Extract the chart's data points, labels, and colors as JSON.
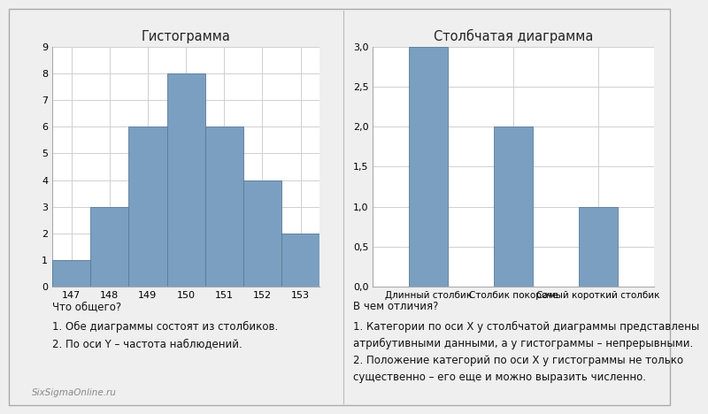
{
  "hist_title": "Гистограмма",
  "bar_title": "Столбчатая диаграмма",
  "hist_bins": [
    147,
    148,
    149,
    150,
    151,
    152,
    153
  ],
  "hist_values": [
    1,
    3,
    6,
    8,
    6,
    4,
    2
  ],
  "hist_ylim": [
    0,
    9
  ],
  "hist_yticks": [
    0,
    1,
    2,
    3,
    4,
    5,
    6,
    7,
    8,
    9
  ],
  "hist_xticks": [
    147,
    148,
    149,
    150,
    151,
    152,
    153
  ],
  "bar_categories": [
    "Длинный столбик",
    "Столбик покороче",
    "Самый короткий столбик"
  ],
  "bar_values": [
    3.0,
    2.0,
    1.0
  ],
  "bar_ylim": [
    0,
    3.0
  ],
  "bar_yticks": [
    0.0,
    0.5,
    1.0,
    1.5,
    2.0,
    2.5,
    3.0
  ],
  "bar_color": "#7a9fc0",
  "hist_color": "#7a9fc0",
  "hist_edge_color": "#5a7a9a",
  "background_color": "#efefef",
  "plot_bg_color": "#ffffff",
  "grid_color": "#d0d0d0",
  "title_fontsize": 10.5,
  "tick_fontsize": 8,
  "label_fontsize": 8,
  "text_fontsize": 8.5,
  "text_bottom_left_title": "Что общего?",
  "text_bottom_left_body": "1. Обе диаграммы состоят из столбиков.\n2. По оси Y – частота наблюдений.",
  "text_bottom_right_title": "В чем отличия?",
  "text_bottom_right_body": "1. Категории по оси X у столбчатой диаграммы представлены\nатрибутивными данными, а у гистограммы – непрерывными.\n2. Положение категорий по оси X у гистограммы не только\nсущественно – его еще и можно выразить численно.",
  "watermark": "SixSigmaOnline.ru",
  "outer_border_color": "#aaaaaa"
}
